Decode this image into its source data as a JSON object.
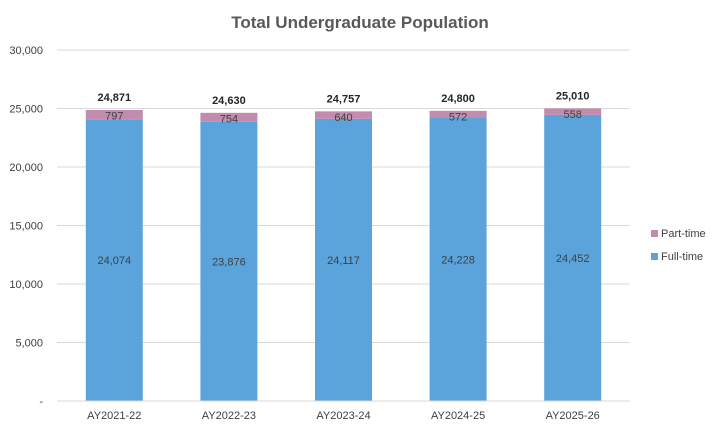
{
  "chart_data": {
    "type": "bar",
    "stacked": true,
    "title": "Total Undergraduate Population",
    "xlabel": "",
    "ylabel": "",
    "ylim": [
      0,
      30000
    ],
    "yticks": [
      0,
      5000,
      10000,
      15000,
      20000,
      25000,
      30000
    ],
    "ytick_labels": [
      "-",
      "5,000",
      "10,000",
      "15,000",
      "20,000",
      "25,000",
      "30,000"
    ],
    "grid": true,
    "legend_position": "right",
    "categories": [
      "AY2021-22",
      "AY2022-23",
      "AY2023-24",
      "AY2024-25",
      "AY2025-26"
    ],
    "series": [
      {
        "name": "Full-time",
        "color": "#5BA4DB",
        "values": [
          24074,
          23876,
          24117,
          24228,
          24452
        ],
        "labels": [
          "24,074",
          "23,876",
          "24,117",
          "24,228",
          "24,452"
        ]
      },
      {
        "name": "Part-time",
        "color": "#C38CAE",
        "values": [
          797,
          754,
          640,
          572,
          558
        ],
        "labels": [
          "797",
          "754",
          "640",
          "572",
          "558"
        ]
      }
    ],
    "totals": [
      24871,
      24630,
      24757,
      24800,
      25010
    ],
    "total_labels": [
      "24,871",
      "24,630",
      "24,757",
      "24,800",
      "25,010"
    ],
    "legend_order": [
      "Part-time",
      "Full-time"
    ]
  }
}
